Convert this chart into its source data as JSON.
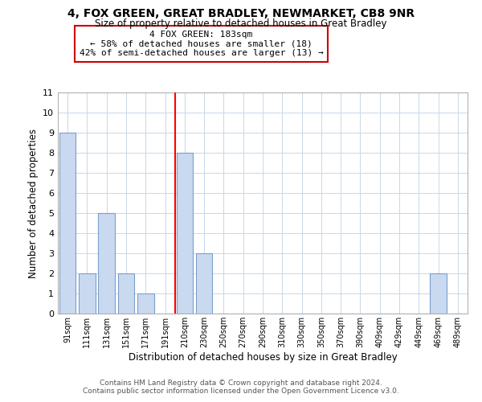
{
  "title": "4, FOX GREEN, GREAT BRADLEY, NEWMARKET, CB8 9NR",
  "subtitle": "Size of property relative to detached houses in Great Bradley",
  "xlabel": "Distribution of detached houses by size in Great Bradley",
  "ylabel": "Number of detached properties",
  "bar_labels": [
    "91sqm",
    "111sqm",
    "131sqm",
    "151sqm",
    "171sqm",
    "191sqm",
    "210sqm",
    "230sqm",
    "250sqm",
    "270sqm",
    "290sqm",
    "310sqm",
    "330sqm",
    "350sqm",
    "370sqm",
    "390sqm",
    "409sqm",
    "429sqm",
    "449sqm",
    "469sqm",
    "489sqm"
  ],
  "bar_values": [
    9,
    2,
    5,
    2,
    1,
    0,
    8,
    3,
    0,
    0,
    0,
    0,
    0,
    0,
    0,
    0,
    0,
    0,
    0,
    2,
    0
  ],
  "bar_color": "#c9d9f0",
  "bar_edge_color": "#7a9fcb",
  "vline_x": 5.5,
  "vline_color": "red",
  "annotation_title": "4 FOX GREEN: 183sqm",
  "annotation_line1": "← 58% of detached houses are smaller (18)",
  "annotation_line2": "42% of semi-detached houses are larger (13) →",
  "ylim": [
    0,
    11
  ],
  "yticks": [
    0,
    1,
    2,
    3,
    4,
    5,
    6,
    7,
    8,
    9,
    10,
    11
  ],
  "footer1": "Contains HM Land Registry data © Crown copyright and database right 2024.",
  "footer2": "Contains public sector information licensed under the Open Government Licence v3.0.",
  "bg_color": "#ffffff",
  "grid_color": "#c8d8e8"
}
